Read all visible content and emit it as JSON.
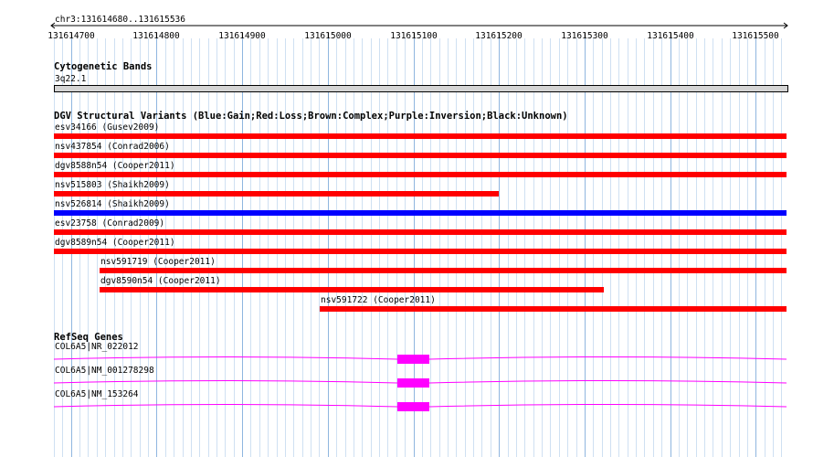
{
  "locus": "chr3:131614680..131615536",
  "ruler": {
    "start": 131614680,
    "end": 131615536,
    "tick_step": 100,
    "tick_labels": [
      "131614700",
      "131614800",
      "131614900",
      "131615000",
      "131615100",
      "131615200",
      "131615300",
      "131615400",
      "131615500"
    ]
  },
  "cytoband": {
    "title": "Cytogenetic Bands",
    "band": "3q22.1"
  },
  "dgv": {
    "title": "DGV Structural Variants (Blue:Gain;Red:Loss;Brown:Complex;Purple:Inversion;Black:Unknown)",
    "variants": [
      {
        "label": "esv34166 (Gusev2009)",
        "start": 131614680,
        "end": 131615536,
        "color": "#ff0000"
      },
      {
        "label": "nsv437854 (Conrad2006)",
        "start": 131614680,
        "end": 131615536,
        "color": "#ff0000"
      },
      {
        "label": "dgv8588n54 (Cooper2011)",
        "start": 131614680,
        "end": 131615536,
        "color": "#ff0000"
      },
      {
        "label": "nsv515803 (Shaikh2009)",
        "start": 131614680,
        "end": 131615200,
        "color": "#ff0000"
      },
      {
        "label": "nsv526814 (Shaikh2009)",
        "start": 131614680,
        "end": 131615536,
        "color": "#0000ff"
      },
      {
        "label": "esv23758 (Conrad2009)",
        "start": 131614680,
        "end": 131615536,
        "color": "#ff0000"
      },
      {
        "label": "dgv8589n54 (Cooper2011)",
        "start": 131614680,
        "end": 131615536,
        "color": "#ff0000"
      },
      {
        "label": "nsv591719 (Cooper2011)",
        "start": 131614733,
        "end": 131615536,
        "color": "#ff0000"
      },
      {
        "label": "dgv8590n54 (Cooper2011)",
        "start": 131614733,
        "end": 131615322,
        "color": "#ff0000"
      },
      {
        "label": "nsv591722 (Cooper2011)",
        "start": 131614991,
        "end": 131615536,
        "color": "#ff0000"
      }
    ]
  },
  "refseq": {
    "title": "RefSeq Genes",
    "genes": [
      {
        "label": "COL6A5|NR_022012",
        "exon_start": 131615081,
        "exon_end": 131615119,
        "color": "#ff00ff"
      },
      {
        "label": "COL6A5|NM_001278298",
        "exon_start": 131615081,
        "exon_end": 131615119,
        "color": "#ff00ff"
      },
      {
        "label": "COL6A5|NM_153264",
        "exon_start": 131615081,
        "exon_end": 131615119,
        "color": "#ff00ff"
      }
    ]
  }
}
